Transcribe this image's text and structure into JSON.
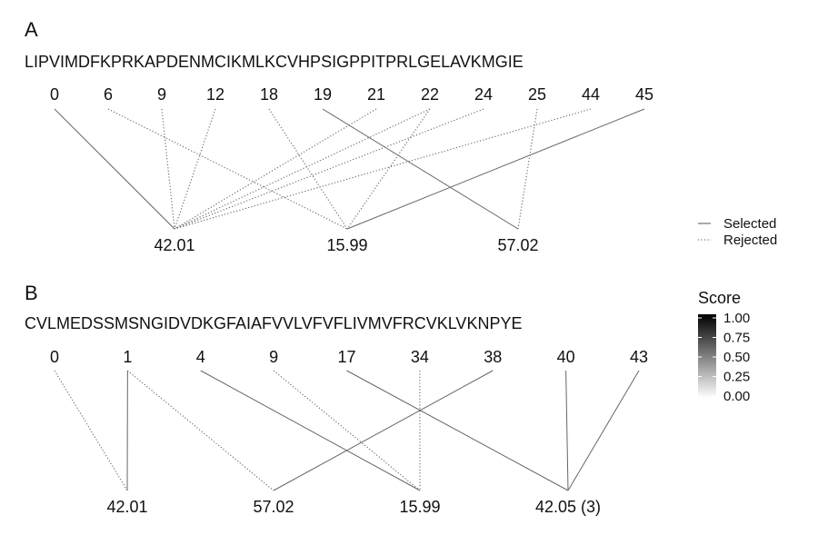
{
  "legend": {
    "line_types": [
      {
        "label": "Selected",
        "style": "solid"
      },
      {
        "label": "Rejected",
        "style": "dotted"
      }
    ],
    "colorbar": {
      "title": "Score",
      "ticks": [
        "1.00",
        "0.75",
        "0.50",
        "0.25",
        "0.00"
      ],
      "colors": [
        "#000000",
        "#ffffff"
      ]
    }
  },
  "line_color": "#666666",
  "chart_data": [
    {
      "type": "bipartite",
      "panel": "A",
      "sequence": "LIPVIMDFKPRKAPDENMCIKMLKCVHPSIGPPITPRLGELAVKMGIE",
      "positions": [
        "0",
        "6",
        "9",
        "12",
        "18",
        "19",
        "21",
        "22",
        "24",
        "25",
        "44",
        "45"
      ],
      "masses": [
        "42.01",
        "15.99",
        "57.02"
      ],
      "links": [
        {
          "position": "0",
          "mass": "42.01",
          "status": "Selected"
        },
        {
          "position": "6",
          "mass": "15.99",
          "status": "Rejected"
        },
        {
          "position": "9",
          "mass": "42.01",
          "status": "Rejected"
        },
        {
          "position": "12",
          "mass": "42.01",
          "status": "Rejected"
        },
        {
          "position": "18",
          "mass": "15.99",
          "status": "Rejected"
        },
        {
          "position": "19",
          "mass": "57.02",
          "status": "Selected"
        },
        {
          "position": "21",
          "mass": "42.01",
          "status": "Rejected"
        },
        {
          "position": "22",
          "mass": "42.01",
          "status": "Rejected"
        },
        {
          "position": "22",
          "mass": "15.99",
          "status": "Rejected"
        },
        {
          "position": "24",
          "mass": "42.01",
          "status": "Rejected"
        },
        {
          "position": "25",
          "mass": "57.02",
          "status": "Rejected"
        },
        {
          "position": "44",
          "mass": "42.01",
          "status": "Rejected"
        },
        {
          "position": "45",
          "mass": "15.99",
          "status": "Selected"
        }
      ]
    },
    {
      "type": "bipartite",
      "panel": "B",
      "sequence": "CVLMEDSSMSNGIDVDKGFAIAFVVLVFVFLIVMVFRCVKLVKNPYE",
      "positions": [
        "0",
        "1",
        "4",
        "9",
        "17",
        "34",
        "38",
        "40",
        "43"
      ],
      "masses": [
        "42.01",
        "57.02",
        "15.99",
        "42.05 (3)"
      ],
      "links": [
        {
          "position": "0",
          "mass": "42.01",
          "status": "Rejected"
        },
        {
          "position": "1",
          "mass": "42.01",
          "status": "Selected"
        },
        {
          "position": "1",
          "mass": "57.02",
          "status": "Rejected"
        },
        {
          "position": "4",
          "mass": "15.99",
          "status": "Selected"
        },
        {
          "position": "9",
          "mass": "15.99",
          "status": "Rejected"
        },
        {
          "position": "17",
          "mass": "42.05 (3)",
          "status": "Selected"
        },
        {
          "position": "34",
          "mass": "15.99",
          "status": "Rejected"
        },
        {
          "position": "38",
          "mass": "57.02",
          "status": "Selected"
        },
        {
          "position": "40",
          "mass": "42.05 (3)",
          "status": "Selected"
        },
        {
          "position": "43",
          "mass": "42.05 (3)",
          "status": "Selected"
        }
      ]
    }
  ]
}
